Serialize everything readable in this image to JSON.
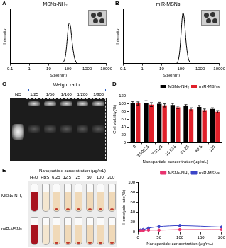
{
  "chart_data": [
    {
      "panel": "A",
      "type": "line",
      "title": "MSNs-NH₂",
      "x_label": "Size(nm)",
      "y_label": "Intensity",
      "log": "x",
      "xlim": [
        0.1,
        10000
      ],
      "xticks": [
        0.1,
        1,
        10,
        100,
        1000,
        10000
      ],
      "ylim": [
        0,
        16
      ],
      "tick_labels": "x",
      "color": "#000000",
      "x": [
        50,
        60,
        70,
        80,
        90,
        100,
        110,
        120,
        135,
        150,
        170,
        200,
        240,
        300
      ],
      "values": [
        0,
        0.5,
        1.5,
        3.5,
        6.5,
        9.5,
        11.5,
        12,
        11.2,
        9,
        6,
        3,
        1,
        0
      ]
    },
    {
      "panel": "B",
      "type": "line",
      "title": "miR-MSNs",
      "x_label": "Size(nm)",
      "y_label": "Intensity",
      "log": "x",
      "xlim": [
        0.1,
        10000
      ],
      "xticks": [
        0.1,
        1,
        10,
        100,
        1000,
        10000
      ],
      "ylim": [
        0,
        16
      ],
      "tick_labels": "x",
      "color": "#000000",
      "x": [
        60,
        70,
        80,
        90,
        100,
        110,
        120,
        130,
        140,
        155,
        170,
        190,
        220,
        260,
        320
      ],
      "values": [
        0,
        0.6,
        2,
        4.5,
        8,
        11.5,
        14,
        15,
        14.6,
        12.5,
        9.5,
        6,
        3,
        1,
        0
      ]
    },
    {
      "panel": "D",
      "type": "bar",
      "x_label": "Nanoparticle concentration(μg/mL)",
      "y_label": "Cell viability(%)",
      "categories": [
        "0",
        "3.90625",
        "7.8125",
        "15.625",
        "31.25",
        "62.5",
        "125"
      ],
      "ylim": [
        0,
        120
      ],
      "yticks": [
        0,
        20,
        40,
        60,
        80,
        100,
        120
      ],
      "legend": "top-right",
      "series": [
        {
          "name": "MSNs-NH₂",
          "color": "#000000",
          "values": [
            100,
            101,
            99,
            96,
            94,
            91,
            86
          ],
          "errors": [
            5,
            6,
            4,
            4,
            3,
            4,
            3
          ]
        },
        {
          "name": "miR-MSNs",
          "color": "#e0202a",
          "values": [
            100,
            97,
            95,
            90,
            85,
            83,
            79
          ],
          "errors": [
            4,
            5,
            4,
            3,
            4,
            3,
            3
          ]
        }
      ]
    },
    {
      "type": "line",
      "x_label": "Nanoparticle concentration (μg/mL)",
      "y_label": "Hemolysis rate(%)",
      "x": [
        6.25,
        12.5,
        25,
        50,
        100,
        200
      ],
      "xlim": [
        0,
        200
      ],
      "xticks": [
        0,
        50,
        100,
        150,
        200
      ],
      "ylim": [
        0,
        100
      ],
      "yticks": [
        0,
        20,
        40,
        60,
        80,
        100
      ],
      "legend": "top-right",
      "series": [
        {
          "name": "MSNs-NH₂",
          "color": "#e8326e",
          "marker": "circle",
          "values": [
            3,
            3,
            4,
            4,
            5,
            5
          ]
        },
        {
          "name": "miR-MSNs",
          "color": "#3b45c8",
          "marker": "circle",
          "values": [
            4,
            5,
            8,
            11,
            13,
            10
          ]
        }
      ]
    }
  ],
  "gel": {
    "panel": "C",
    "title": "Weight ratio",
    "lanes": [
      "NC",
      "1/25",
      "1/50",
      "1/100",
      "1/200",
      "1/300"
    ]
  },
  "photo": {
    "panel": "E",
    "title": "Nanoparticle concentration (μg/mL)",
    "columns": [
      "H₂O",
      "PBS",
      "6.25",
      "12.5",
      "25",
      "50",
      "100",
      "200"
    ],
    "rows": [
      "MSNs-NH₂",
      "miR-MSNs"
    ]
  }
}
